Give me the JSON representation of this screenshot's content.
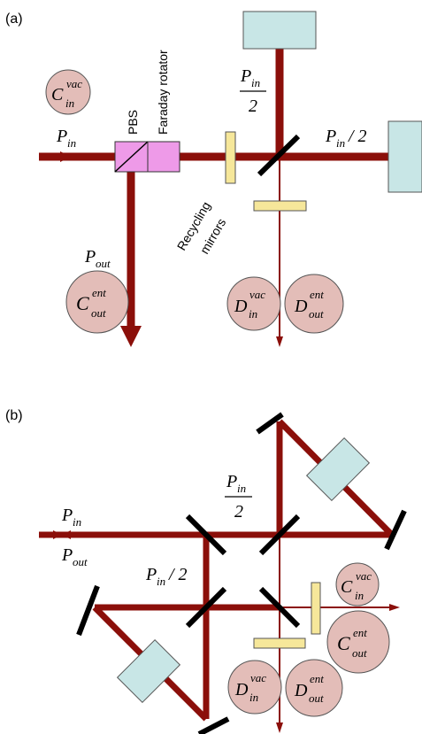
{
  "panels": {
    "a": {
      "label": "(a)",
      "pbs_label": "PBS",
      "faraday_label": "Faraday rotator",
      "recycling_label_line1": "Recycling",
      "recycling_label_line2": "mirrors",
      "P_in": {
        "base": "P",
        "sub": "in"
      },
      "P_in_half_num": {
        "base": "P",
        "sub": "in"
      },
      "P_in_half_den": "2",
      "P_in_slash2": {
        "base": "P",
        "sub": "in",
        "tail": " / 2"
      },
      "P_out": {
        "base": "P",
        "sub": "out"
      },
      "C_in_vac": {
        "base": "C",
        "sup": "vac",
        "sub": "in"
      },
      "C_out_ent": {
        "base": "C",
        "sup": "ent",
        "sub": "out"
      },
      "D_in_vac": {
        "base": "D",
        "sup": "vac",
        "sub": "in"
      },
      "D_out_ent": {
        "base": "D",
        "sup": "ent",
        "sub": "out"
      }
    },
    "b": {
      "label": "(b)",
      "P_in": {
        "base": "P",
        "sub": "in"
      },
      "P_out": {
        "base": "P",
        "sub": "out"
      },
      "P_in_half_num": {
        "base": "P",
        "sub": "in"
      },
      "P_in_half_den": "2",
      "P_in_slash2": {
        "base": "P",
        "sub": "in",
        "tail": " / 2"
      },
      "C_in_vac": {
        "base": "C",
        "sup": "vac",
        "sub": "in"
      },
      "C_out_ent": {
        "base": "C",
        "sup": "ent",
        "sub": "out"
      },
      "D_in_vac": {
        "base": "D",
        "sup": "vac",
        "sub": "in"
      },
      "D_out_ent": {
        "base": "D",
        "sup": "ent",
        "sub": "out"
      }
    }
  },
  "colors": {
    "beam": "#8b0f0a",
    "cavity": "#c8e6e6",
    "plate": "#f6e79a",
    "rotator": "#ee9ae8",
    "mode_circle": "#e3bdb8",
    "mirror": "#000000"
  }
}
